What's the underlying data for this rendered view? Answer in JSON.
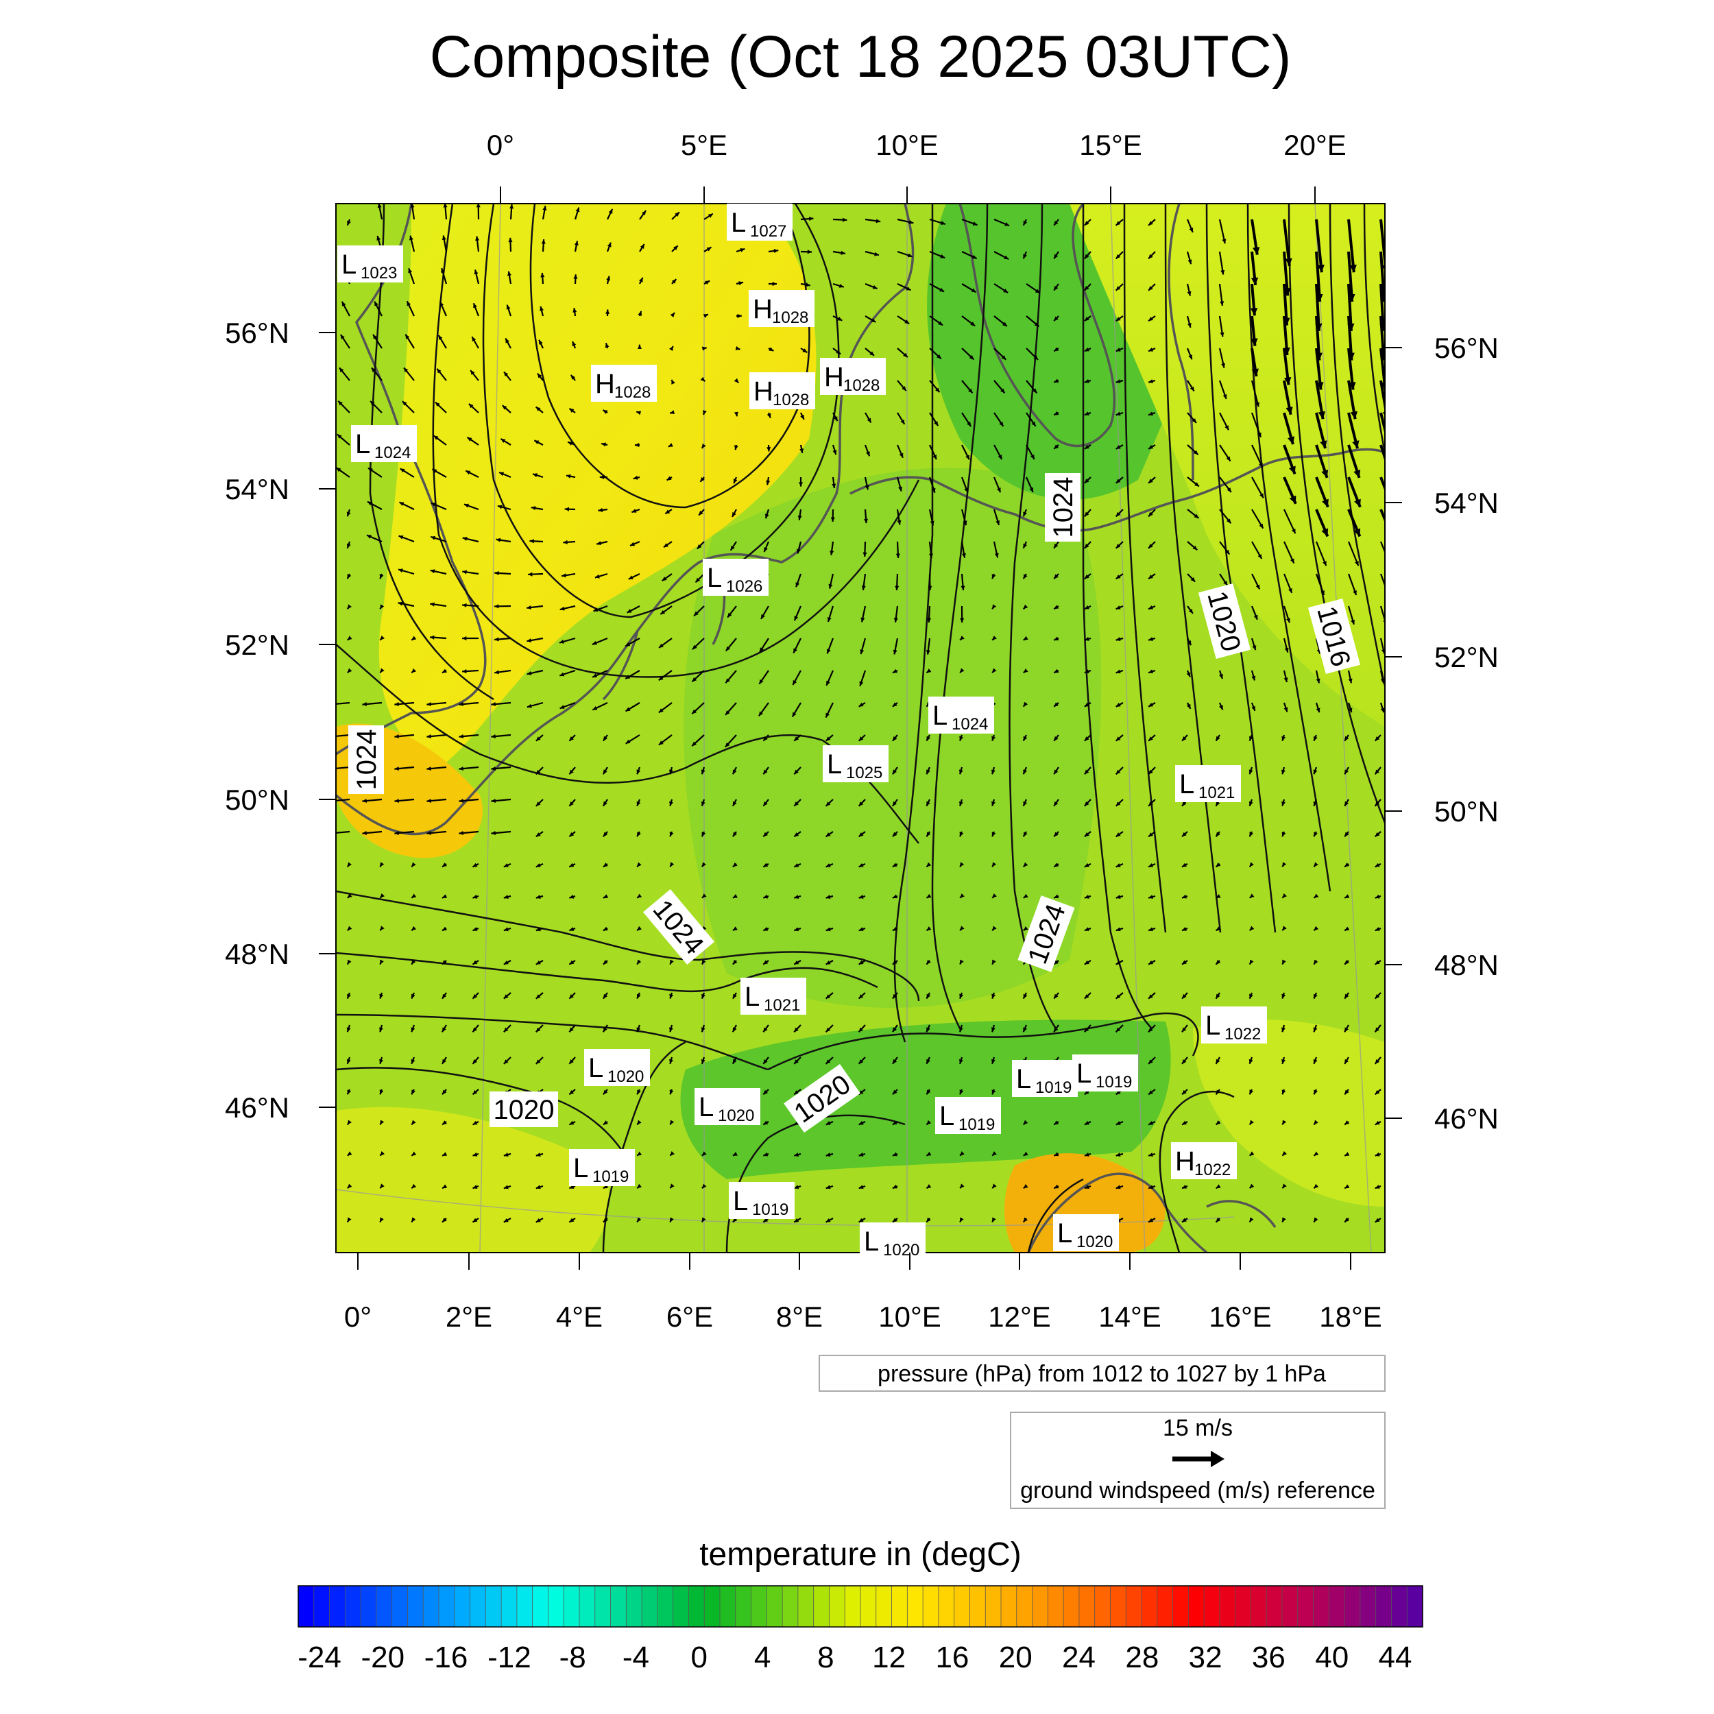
{
  "title": "Composite (Oct 18 2025 03UTC)",
  "top_axis_labels": [
    "0°",
    "5°E",
    "10°E",
    "15°E",
    "20°E"
  ],
  "bottom_axis_labels": [
    "0°",
    "2°E",
    "4°E",
    "6°E",
    "8°E",
    "10°E",
    "12°E",
    "14°E",
    "16°E",
    "18°E"
  ],
  "left_axis_labels": [
    "56°N",
    "54°N",
    "52°N",
    "50°N",
    "48°N",
    "46°N"
  ],
  "right_axis_labels": [
    "56°N",
    "54°N",
    "52°N",
    "50°N",
    "48°N",
    "46°N"
  ],
  "pressure_info": "pressure (hPa) from 1012 to 1027 by 1 hPa",
  "wind_reference": {
    "speed_label": "15 m/s",
    "caption": "ground windspeed (m/s) reference"
  },
  "colorbar": {
    "title": "temperature in (degC)",
    "ticks": [
      "-24",
      "-20",
      "-16",
      "-12",
      "-8",
      "-4",
      "0",
      "4",
      "8",
      "12",
      "16",
      "20",
      "24",
      "28",
      "32",
      "36",
      "40",
      "44"
    ]
  },
  "pressure_centers": [
    {
      "type": "L",
      "value": "1023"
    },
    {
      "type": "L",
      "value": "1027"
    },
    {
      "type": "H",
      "value": "1028"
    },
    {
      "type": "H",
      "value": "1028"
    },
    {
      "type": "H",
      "value": "1028"
    },
    {
      "type": "H",
      "value": "1028"
    },
    {
      "type": "L",
      "value": "1024"
    },
    {
      "type": "L",
      "value": "1026"
    },
    {
      "type": "L",
      "value": "1024"
    },
    {
      "type": "L",
      "value": "1025"
    },
    {
      "type": "L",
      "value": "1021"
    },
    {
      "type": "L",
      "value": "1021"
    },
    {
      "type": "L",
      "value": "1022"
    },
    {
      "type": "L",
      "value": "1020"
    },
    {
      "type": "L",
      "value": "1019"
    },
    {
      "type": "L",
      "value": "1019"
    },
    {
      "type": "L",
      "value": "1020"
    },
    {
      "type": "L",
      "value": "1019"
    },
    {
      "type": "L",
      "value": "1019"
    },
    {
      "type": "H",
      "value": "1022"
    },
    {
      "type": "L",
      "value": "1019"
    },
    {
      "type": "L",
      "value": "1020"
    },
    {
      "type": "L",
      "value": "1020"
    }
  ],
  "isobar_labels": [
    "1024",
    "1024",
    "1020",
    "1016",
    "1024",
    "1024",
    "1020",
    "1020"
  ]
}
